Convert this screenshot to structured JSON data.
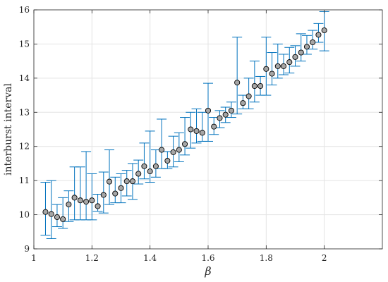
{
  "chart_data": {
    "type": "scatter",
    "title": "",
    "xlabel": "β",
    "ylabel": "interburst interval",
    "xlim": [
      1,
      2.2
    ],
    "ylim": [
      9,
      16
    ],
    "x_ticks": [
      "1",
      "1.2",
      "1.4",
      "1.6",
      "1.8",
      "2"
    ],
    "y_ticks": [
      "9",
      "10",
      "11",
      "12",
      "13",
      "14",
      "15",
      "16"
    ],
    "grid": true,
    "legend": "none",
    "colors": {
      "errorbar": "#0072BD",
      "marker_fill": "#A6A6A6",
      "marker_edge": "#000000"
    },
    "series": [
      {
        "marker": "circle",
        "error_bars": true,
        "points": [
          {
            "x": 1.04,
            "y": 10.08,
            "lo": 9.4,
            "hi": 10.95
          },
          {
            "x": 1.06,
            "y": 10.02,
            "lo": 9.3,
            "hi": 11.0
          },
          {
            "x": 1.08,
            "y": 9.93,
            "lo": 9.65,
            "hi": 10.3
          },
          {
            "x": 1.1,
            "y": 9.87,
            "lo": 9.6,
            "hi": 10.5
          },
          {
            "x": 1.12,
            "y": 10.3,
            "lo": 9.8,
            "hi": 10.7
          },
          {
            "x": 1.14,
            "y": 10.5,
            "lo": 9.85,
            "hi": 11.4
          },
          {
            "x": 1.16,
            "y": 10.42,
            "lo": 9.85,
            "hi": 11.4
          },
          {
            "x": 1.18,
            "y": 10.38,
            "lo": 9.85,
            "hi": 11.85
          },
          {
            "x": 1.2,
            "y": 10.42,
            "lo": 9.85,
            "hi": 11.2
          },
          {
            "x": 1.22,
            "y": 10.25,
            "lo": 10.1,
            "hi": 10.6
          },
          {
            "x": 1.24,
            "y": 10.58,
            "lo": 10.05,
            "hi": 11.25
          },
          {
            "x": 1.26,
            "y": 10.97,
            "lo": 10.3,
            "hi": 11.9
          },
          {
            "x": 1.28,
            "y": 10.62,
            "lo": 10.35,
            "hi": 11.1
          },
          {
            "x": 1.3,
            "y": 10.78,
            "lo": 10.35,
            "hi": 11.2
          },
          {
            "x": 1.32,
            "y": 10.98,
            "lo": 10.55,
            "hi": 11.3
          },
          {
            "x": 1.34,
            "y": 10.98,
            "lo": 10.45,
            "hi": 11.5
          },
          {
            "x": 1.36,
            "y": 11.2,
            "lo": 10.9,
            "hi": 11.6
          },
          {
            "x": 1.38,
            "y": 11.42,
            "lo": 11.05,
            "hi": 12.1
          },
          {
            "x": 1.4,
            "y": 11.27,
            "lo": 10.95,
            "hi": 12.45
          },
          {
            "x": 1.42,
            "y": 11.42,
            "lo": 11.1,
            "hi": 11.9
          },
          {
            "x": 1.44,
            "y": 11.9,
            "lo": 11.35,
            "hi": 12.8
          },
          {
            "x": 1.46,
            "y": 11.58,
            "lo": 11.35,
            "hi": 11.85
          },
          {
            "x": 1.48,
            "y": 11.83,
            "lo": 11.4,
            "hi": 12.3
          },
          {
            "x": 1.5,
            "y": 11.9,
            "lo": 11.55,
            "hi": 12.4
          },
          {
            "x": 1.52,
            "y": 12.07,
            "lo": 11.75,
            "hi": 12.85
          },
          {
            "x": 1.54,
            "y": 12.5,
            "lo": 11.95,
            "hi": 13.0
          },
          {
            "x": 1.56,
            "y": 12.45,
            "lo": 12.1,
            "hi": 13.1
          },
          {
            "x": 1.58,
            "y": 12.4,
            "lo": 12.15,
            "hi": 13.0
          },
          {
            "x": 1.6,
            "y": 13.05,
            "lo": 12.15,
            "hi": 13.85
          },
          {
            "x": 1.62,
            "y": 12.58,
            "lo": 12.35,
            "hi": 12.85
          },
          {
            "x": 1.64,
            "y": 12.83,
            "lo": 12.55,
            "hi": 13.05
          },
          {
            "x": 1.66,
            "y": 12.93,
            "lo": 12.7,
            "hi": 13.15
          },
          {
            "x": 1.68,
            "y": 13.05,
            "lo": 12.85,
            "hi": 13.3
          },
          {
            "x": 1.7,
            "y": 13.87,
            "lo": 12.95,
            "hi": 15.2
          },
          {
            "x": 1.72,
            "y": 13.27,
            "lo": 13.1,
            "hi": 13.5
          },
          {
            "x": 1.74,
            "y": 13.47,
            "lo": 13.1,
            "hi": 14.0
          },
          {
            "x": 1.76,
            "y": 13.77,
            "lo": 13.3,
            "hi": 14.5
          },
          {
            "x": 1.78,
            "y": 13.77,
            "lo": 13.5,
            "hi": 14.05
          },
          {
            "x": 1.8,
            "y": 14.27,
            "lo": 13.5,
            "hi": 15.2
          },
          {
            "x": 1.82,
            "y": 14.13,
            "lo": 13.8,
            "hi": 14.75
          },
          {
            "x": 1.84,
            "y": 14.35,
            "lo": 14.0,
            "hi": 15.0
          },
          {
            "x": 1.86,
            "y": 14.35,
            "lo": 14.1,
            "hi": 14.7
          },
          {
            "x": 1.88,
            "y": 14.47,
            "lo": 14.15,
            "hi": 14.9
          },
          {
            "x": 1.9,
            "y": 14.62,
            "lo": 14.35,
            "hi": 14.95
          },
          {
            "x": 1.92,
            "y": 14.75,
            "lo": 14.5,
            "hi": 15.3
          },
          {
            "x": 1.94,
            "y": 14.92,
            "lo": 14.7,
            "hi": 15.25
          },
          {
            "x": 1.96,
            "y": 15.05,
            "lo": 14.85,
            "hi": 15.4
          },
          {
            "x": 1.98,
            "y": 15.27,
            "lo": 15.05,
            "hi": 15.6
          },
          {
            "x": 2.0,
            "y": 15.4,
            "lo": 14.8,
            "hi": 15.95
          }
        ]
      }
    ]
  }
}
